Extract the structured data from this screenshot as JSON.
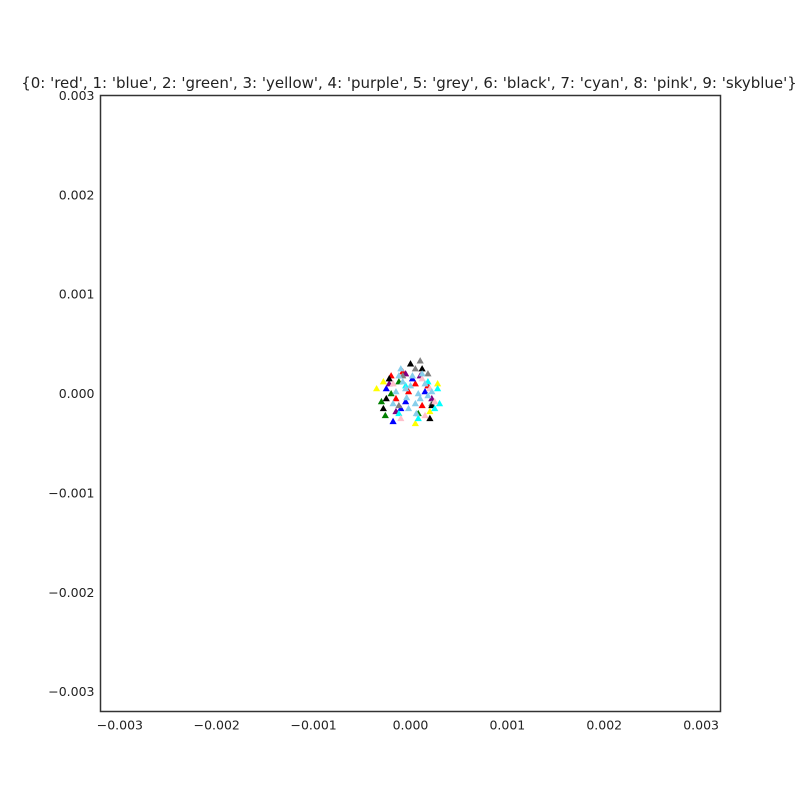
{
  "chart_data": {
    "type": "scatter",
    "title": "{0: 'red', 1: 'blue', 2: 'green', 3: 'yellow', 4: 'purple', 5: 'grey', 6: 'black', 7: 'cyan', 8: 'pink', 9: 'skyblue'}",
    "xlabel": "",
    "ylabel": "",
    "xlim": [
      -0.0032,
      0.0032
    ],
    "ylim": [
      -0.0032,
      0.003
    ],
    "xticks": [
      -0.003,
      -0.002,
      -0.001,
      0.0,
      0.001,
      0.002,
      0.003
    ],
    "xtick_labels": [
      "−0.003",
      "−0.002",
      "−0.001",
      "0.000",
      "0.001",
      "0.002",
      "0.003"
    ],
    "yticks": [
      -0.003,
      -0.002,
      -0.001,
      0.0,
      0.001,
      0.002,
      0.003
    ],
    "ytick_labels": [
      "−0.003",
      "−0.002",
      "−0.001",
      "0.000",
      "0.001",
      "0.002",
      "0.003"
    ],
    "grid": false,
    "marker": "triangle-up",
    "series": [
      {
        "label": "0",
        "color": "red",
        "points": [
          [
            -0.0002,
            0.00018
          ],
          [
            -8e-05,
            0.00022
          ],
          [
            5e-05,
            0.0001
          ],
          [
            -0.00015,
            -5e-05
          ],
          [
            0.00012,
            -0.00012
          ],
          [
            -2e-05,
            2e-05
          ],
          [
            0.00018,
            8e-05
          ]
        ]
      },
      {
        "label": "1",
        "color": "blue",
        "points": [
          [
            -0.00018,
            -0.00028
          ],
          [
            -0.00025,
            5e-05
          ],
          [
            2e-05,
            0.00015
          ],
          [
            -0.0001,
            -0.00015
          ],
          [
            0.00015,
            2e-05
          ],
          [
            -5e-05,
            -8e-05
          ]
        ]
      },
      {
        "label": "2",
        "color": "green",
        "points": [
          [
            -0.00026,
            -0.00022
          ],
          [
            -0.0003,
            -8e-05
          ],
          [
            -0.00012,
            0.00012
          ],
          [
            8e-05,
            -0.0002
          ],
          [
            -0.0002,
            0.0
          ]
        ]
      },
      {
        "label": "3",
        "color": "yellow",
        "points": [
          [
            -0.00035,
            5e-05
          ],
          [
            0.00028,
            0.0001
          ],
          [
            5e-05,
            -0.0003
          ],
          [
            -0.00028,
            0.00012
          ],
          [
            0.0002,
            -0.00018
          ]
        ]
      },
      {
        "label": "4",
        "color": "purple",
        "points": [
          [
            -0.00022,
            0.0001
          ],
          [
            -0.00015,
            -0.00018
          ],
          [
            0.0001,
            0.00018
          ],
          [
            0.00022,
            -5e-05
          ],
          [
            -5e-05,
            0.0002
          ]
        ]
      },
      {
        "label": "5",
        "color": "grey",
        "points": [
          [
            0.0001,
            0.00033
          ],
          [
            5e-05,
            0.00025
          ],
          [
            -8e-05,
            0.00018
          ],
          [
            0.00018,
            0.0002
          ],
          [
            0.00022,
            -0.0001
          ],
          [
            -0.00012,
            -0.00012
          ]
        ]
      },
      {
        "label": "6",
        "color": "black",
        "points": [
          [
            0.0,
            0.0003
          ],
          [
            -0.00025,
            -5e-05
          ],
          [
            -0.00028,
            -0.00015
          ],
          [
            0.0002,
            -0.00025
          ],
          [
            0.00022,
            -0.00012
          ],
          [
            -0.00022,
            0.00015
          ],
          [
            0.00012,
            0.00025
          ]
        ]
      },
      {
        "label": "7",
        "color": "cyan",
        "points": [
          [
            0.0003,
            -0.0001
          ],
          [
            0.00025,
            -0.00015
          ],
          [
            8e-05,
            -0.00025
          ],
          [
            -5e-05,
            8e-05
          ],
          [
            0.00018,
            0.00012
          ],
          [
            -0.00012,
            -0.0002
          ],
          [
            0.00028,
            5e-05
          ]
        ]
      },
      {
        "label": "8",
        "color": "pink",
        "points": [
          [
            0.00015,
            -0.00022
          ],
          [
            0.0002,
            5e-05
          ],
          [
            -0.0001,
            -0.00025
          ],
          [
            0.00025,
            -8e-05
          ],
          [
            -0.00018,
            0.0001
          ],
          [
            0.00012,
            0.00015
          ]
        ]
      },
      {
        "label": "9",
        "color": "skyblue",
        "points": [
          [
            -0.0001,
            0.00025
          ],
          [
            2e-05,
            0.00018
          ],
          [
            -5e-05,
            5e-05
          ],
          [
            8e-05,
            0.0
          ],
          [
            0.00015,
            0.0001
          ],
          [
            -0.00015,
            2e-05
          ],
          [
            5e-05,
            -0.0001
          ],
          [
            -2e-05,
            -0.00015
          ],
          [
            0.0001,
            -5e-05
          ],
          [
            -8e-05,
            0.00012
          ],
          [
            0.00018,
            -2e-05
          ],
          [
            -0.00018,
            -0.0001
          ],
          [
            0.0,
            8e-05
          ],
          [
            0.00012,
            0.0002
          ],
          [
            -0.00012,
            0.00018
          ],
          [
            6e-05,
            -0.0002
          ],
          [
            0.00022,
            2e-05
          ],
          [
            -4e-05,
            -4e-05
          ]
        ]
      }
    ]
  }
}
